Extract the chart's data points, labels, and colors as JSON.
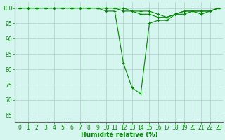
{
  "x": [
    0,
    1,
    2,
    3,
    4,
    5,
    6,
    7,
    8,
    9,
    10,
    11,
    12,
    13,
    14,
    15,
    16,
    17,
    18,
    19,
    20,
    21,
    22,
    23
  ],
  "y_main": [
    100,
    100,
    100,
    100,
    100,
    100,
    100,
    100,
    100,
    100,
    99,
    99,
    82,
    74,
    72,
    95,
    96,
    96,
    98,
    98,
    99,
    99,
    99,
    100
  ],
  "y_upper1": [
    100,
    100,
    100,
    100,
    100,
    100,
    100,
    100,
    100,
    100,
    100,
    100,
    99,
    99,
    98,
    98,
    97,
    97,
    98,
    99,
    99,
    98,
    99,
    100
  ],
  "y_upper2": [
    100,
    100,
    100,
    100,
    100,
    100,
    100,
    100,
    100,
    100,
    100,
    100,
    100,
    99,
    99,
    99,
    98,
    97,
    98,
    99,
    99,
    99,
    99,
    100
  ],
  "line_color": "#008800",
  "marker": "+",
  "bg_color": "#d5f5ef",
  "grid_color": "#b0cccc",
  "xlabel": "Humidité relative (%)",
  "ylim": [
    63,
    102
  ],
  "xlim": [
    -0.5,
    23.5
  ],
  "yticks": [
    65,
    70,
    75,
    80,
    85,
    90,
    95,
    100
  ],
  "xticks": [
    0,
    1,
    2,
    3,
    4,
    5,
    6,
    7,
    8,
    9,
    10,
    11,
    12,
    13,
    14,
    15,
    16,
    17,
    18,
    19,
    20,
    21,
    22,
    23
  ],
  "xlabel_color": "#008800",
  "tick_color": "#008800",
  "tick_fontsize": 5.5,
  "xlabel_fontsize": 6.5
}
